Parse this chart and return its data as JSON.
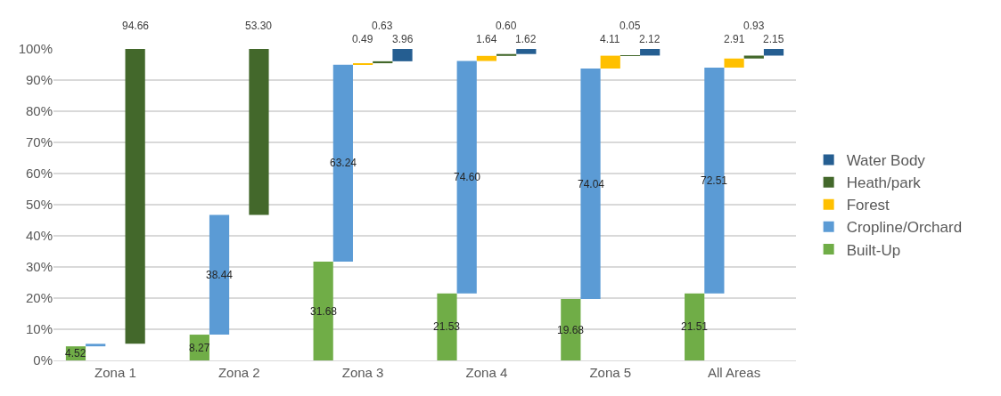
{
  "chart_data": {
    "type": "bar",
    "categories": [
      "Zona 1",
      "Zona 2",
      "Zona 3",
      "Zona 4",
      "Zona 5",
      "All Areas"
    ],
    "series": [
      {
        "name": "Built-Up",
        "color": "#70ad47",
        "values": [
          4.52,
          8.27,
          31.68,
          21.53,
          19.68,
          21.51
        ],
        "base": [
          0,
          0,
          0,
          0,
          0,
          0
        ],
        "value_labels": [
          "4.52",
          "8.27",
          "31.68",
          "21.53",
          "19.68",
          "21.51"
        ]
      },
      {
        "name": "Cropline/Orchard",
        "color": "#5b9bd5",
        "values": [
          0.8,
          38.44,
          63.24,
          74.6,
          74.04,
          72.51
        ],
        "base": [
          4.52,
          8.27,
          31.68,
          21.53,
          19.68,
          21.51
        ],
        "value_labels": [
          null,
          "38.44",
          "63.24",
          "74.60",
          "74.04",
          "72.51"
        ]
      },
      {
        "name": "Forest",
        "color": "#ffc000",
        "values": [
          null,
          null,
          0.49,
          1.64,
          4.11,
          2.91
        ],
        "base": [
          null,
          null,
          94.92,
          96.13,
          93.72,
          94.02
        ],
        "value_labels": [
          null,
          null,
          "0.49",
          "1.64",
          "4.11",
          "2.91"
        ]
      },
      {
        "name": "Heath/park",
        "color": "#43682b",
        "values": [
          94.66,
          53.3,
          0.63,
          0.6,
          0.05,
          0.93
        ],
        "base": [
          5.34,
          46.71,
          95.41,
          97.77,
          97.83,
          96.93
        ],
        "value_labels": [
          "94.66",
          "53.30",
          "0.63",
          "0.60",
          "0.05",
          "0.93"
        ]
      },
      {
        "name": "Water Body",
        "color": "#255e91",
        "values": [
          null,
          null,
          3.96,
          1.62,
          2.12,
          2.15
        ],
        "base": [
          null,
          null,
          96.04,
          98.37,
          97.88,
          97.86
        ],
        "value_labels": [
          null,
          null,
          "3.96",
          "1.62",
          "2.12",
          "2.15"
        ]
      }
    ],
    "ylim": [
      0,
      100
    ],
    "yticks": [
      {
        "value": 0,
        "label": "0%"
      },
      {
        "value": 10,
        "label": "10%"
      },
      {
        "value": 20,
        "label": "20%"
      },
      {
        "value": 30,
        "label": "30%"
      },
      {
        "value": 40,
        "label": "40%"
      },
      {
        "value": 50,
        "label": "50%"
      },
      {
        "value": 60,
        "label": "60%"
      },
      {
        "value": 70,
        "label": "70%"
      },
      {
        "value": 80,
        "label": "80%"
      },
      {
        "value": 90,
        "label": "90%"
      },
      {
        "value": 100,
        "label": "100%"
      }
    ],
    "grid": "y",
    "legend": "right"
  }
}
